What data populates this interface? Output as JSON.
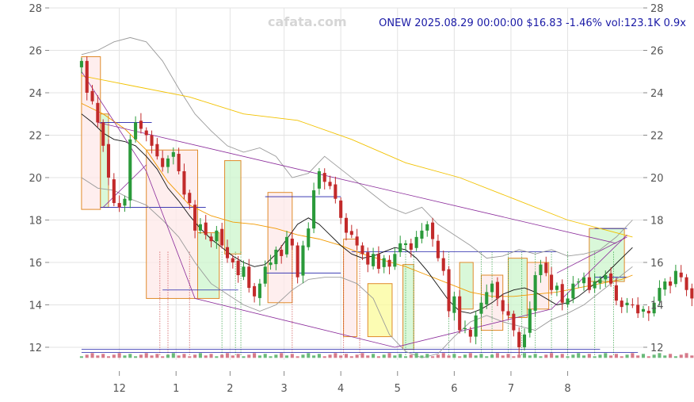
{
  "header": {
    "watermark": "cafata.com",
    "title": "ONEW 2025.08.29 00:00:00 $16.83 -1.46% vol:123.1K 0.9x"
  },
  "chart_data": {
    "type": "candlestick",
    "ylim": [
      11.4,
      28
    ],
    "y_ticks": [
      12,
      14,
      16,
      18,
      20,
      22,
      24,
      26,
      28
    ],
    "x_ticks": [
      {
        "label": "12",
        "t": 7
      },
      {
        "label": "1",
        "t": 17.5
      },
      {
        "label": "2",
        "t": 27.5
      },
      {
        "label": "3",
        "t": 37.5
      },
      {
        "label": "4",
        "t": 48
      },
      {
        "label": "5",
        "t": 58.5
      },
      {
        "label": "6",
        "t": 69
      },
      {
        "label": "7",
        "t": 79.5
      },
      {
        "label": "8",
        "t": 90
      }
    ],
    "xlim": [
      -6,
      104
    ],
    "closes": [
      25.5,
      24.0,
      23.6,
      22.6,
      21.5,
      20.0,
      18.8,
      18.6,
      19.0,
      21.8,
      22.6,
      22.3,
      22.0,
      21.5,
      21.0,
      20.5,
      20.9,
      21.2,
      20.3,
      19.2,
      18.8,
      17.5,
      17.8,
      17.3,
      17.0,
      17.5,
      16.8,
      16.2,
      16.0,
      15.4,
      15.8,
      14.8,
      14.4,
      15.0,
      15.8,
      16.0,
      16.6,
      16.3,
      17.2,
      16.8,
      15.3,
      16.8,
      17.6,
      19.4,
      20.3,
      19.8,
      19.6,
      19.0,
      18.1,
      17.4,
      17.3,
      16.8,
      16.4,
      15.9,
      16.4,
      15.7,
      16.2,
      15.8,
      16.4,
      16.9,
      16.9,
      16.6,
      17.2,
      17.5,
      17.8,
      17.1,
      16.2,
      15.6,
      13.7,
      14.4,
      12.8,
      12.9,
      12.5,
      13.5,
      14.1,
      14.6,
      15.0,
      14.3,
      13.7,
      13.5,
      12.8,
      12.0,
      12.6,
      13.8,
      15.4,
      15.9,
      15.5,
      14.7,
      14.9,
      14.1,
      14.3,
      15.0,
      15.1,
      15.3,
      14.7,
      15.1,
      15.2,
      15.4,
      15.0,
      14.2,
      13.9,
      14.1,
      14.0,
      13.6,
      13.8,
      13.6,
      14.1,
      14.8,
      15.1,
      14.9,
      15.6,
      15.3,
      14.7,
      14.3,
      14.1,
      14.5,
      15.2,
      14.9,
      15.6,
      15.9,
      16.0,
      16.2,
      16.1,
      16.7,
      16.8,
      16.9,
      17.1,
      17.3,
      17.2,
      17.0,
      16.8
    ],
    "ma_short": [
      [
        0,
        23.0
      ],
      [
        2,
        22.6
      ],
      [
        4,
        22.1
      ],
      [
        6,
        21.8
      ],
      [
        8,
        21.7
      ],
      [
        10,
        21.5
      ],
      [
        12,
        21.0
      ],
      [
        14,
        20.4
      ],
      [
        16,
        19.5
      ],
      [
        18,
        18.9
      ],
      [
        20,
        18.2
      ],
      [
        22,
        17.6
      ],
      [
        24,
        17.1
      ],
      [
        26,
        16.7
      ],
      [
        28,
        16.3
      ],
      [
        30,
        16.0
      ],
      [
        32,
        15.8
      ],
      [
        34,
        15.9
      ],
      [
        36,
        16.4
      ],
      [
        38,
        17.1
      ],
      [
        40,
        17.8
      ],
      [
        42,
        18.1
      ],
      [
        44,
        17.8
      ],
      [
        46,
        17.3
      ],
      [
        48,
        16.8
      ],
      [
        50,
        16.4
      ],
      [
        52,
        16.2
      ],
      [
        54,
        16.3
      ],
      [
        56,
        16.5
      ],
      [
        58,
        16.7
      ],
      [
        60,
        16.6
      ],
      [
        62,
        16.2
      ],
      [
        64,
        15.6
      ],
      [
        66,
        14.9
      ],
      [
        68,
        14.2
      ],
      [
        70,
        13.7
      ],
      [
        72,
        13.6
      ],
      [
        74,
        13.8
      ],
      [
        76,
        14.1
      ],
      [
        78,
        14.5
      ],
      [
        80,
        14.7
      ],
      [
        82,
        14.8
      ],
      [
        84,
        14.6
      ],
      [
        86,
        14.3
      ],
      [
        88,
        14.0
      ],
      [
        90,
        14.1
      ],
      [
        92,
        14.4
      ],
      [
        94,
        14.8
      ],
      [
        96,
        15.2
      ],
      [
        98,
        15.7
      ],
      [
        100,
        16.2
      ],
      [
        102,
        16.7
      ]
    ],
    "ma_mid": [
      [
        0,
        23.5
      ],
      [
        4,
        23.0
      ],
      [
        8,
        22.3
      ],
      [
        12,
        21.3
      ],
      [
        16,
        19.8
      ],
      [
        20,
        18.7
      ],
      [
        24,
        18.2
      ],
      [
        28,
        17.9
      ],
      [
        32,
        17.8
      ],
      [
        36,
        17.6
      ],
      [
        40,
        17.3
      ],
      [
        44,
        17.1
      ],
      [
        48,
        16.8
      ],
      [
        52,
        16.4
      ],
      [
        56,
        16.1
      ],
      [
        60,
        15.8
      ],
      [
        64,
        15.4
      ],
      [
        68,
        15.0
      ],
      [
        72,
        14.6
      ],
      [
        76,
        14.4
      ],
      [
        80,
        14.4
      ],
      [
        84,
        14.5
      ],
      [
        88,
        14.6
      ],
      [
        92,
        14.8
      ],
      [
        96,
        15.0
      ],
      [
        100,
        15.2
      ],
      [
        102,
        15.4
      ]
    ],
    "ma_long": [
      [
        0,
        24.8
      ],
      [
        10,
        24.3
      ],
      [
        20,
        23.8
      ],
      [
        30,
        23.0
      ],
      [
        40,
        22.7
      ],
      [
        50,
        21.8
      ],
      [
        60,
        20.7
      ],
      [
        70,
        20.0
      ],
      [
        80,
        19.0
      ],
      [
        90,
        18.0
      ],
      [
        96,
        17.6
      ],
      [
        102,
        17.2
      ]
    ],
    "bb_upper": [
      [
        0,
        25.8
      ],
      [
        3,
        26.0
      ],
      [
        6,
        26.4
      ],
      [
        9,
        26.6
      ],
      [
        12,
        26.4
      ],
      [
        15,
        25.5
      ],
      [
        18,
        24.2
      ],
      [
        21,
        23.0
      ],
      [
        24,
        22.2
      ],
      [
        27,
        21.5
      ],
      [
        30,
        21.2
      ],
      [
        33,
        21.4
      ],
      [
        36,
        21.0
      ],
      [
        39,
        20.0
      ],
      [
        42,
        20.2
      ],
      [
        45,
        21.0
      ],
      [
        48,
        20.4
      ],
      [
        51,
        19.8
      ],
      [
        54,
        19.2
      ],
      [
        57,
        18.6
      ],
      [
        60,
        18.3
      ],
      [
        63,
        18.6
      ],
      [
        66,
        17.8
      ],
      [
        69,
        17.3
      ],
      [
        72,
        16.8
      ],
      [
        75,
        16.2
      ],
      [
        78,
        16.3
      ],
      [
        81,
        16.6
      ],
      [
        84,
        16.4
      ],
      [
        87,
        16.6
      ],
      [
        90,
        16.3
      ],
      [
        93,
        16.4
      ],
      [
        96,
        16.6
      ],
      [
        99,
        17.2
      ],
      [
        102,
        18.0
      ]
    ],
    "bb_lower": [
      [
        0,
        20.0
      ],
      [
        3,
        19.5
      ],
      [
        6,
        19.4
      ],
      [
        9,
        19.0
      ],
      [
        12,
        18.7
      ],
      [
        15,
        18.0
      ],
      [
        18,
        17.2
      ],
      [
        21,
        16.0
      ],
      [
        24,
        15.0
      ],
      [
        27,
        14.5
      ],
      [
        30,
        14.0
      ],
      [
        33,
        13.7
      ],
      [
        36,
        14.0
      ],
      [
        39,
        14.7
      ],
      [
        42,
        15.2
      ],
      [
        45,
        15.3
      ],
      [
        48,
        15.3
      ],
      [
        51,
        15.0
      ],
      [
        54,
        14.3
      ],
      [
        57,
        12.6
      ],
      [
        60,
        11.8
      ],
      [
        63,
        11.5
      ],
      [
        66,
        11.7
      ],
      [
        69,
        12.5
      ],
      [
        72,
        13.2
      ],
      [
        75,
        13.5
      ],
      [
        78,
        13.2
      ],
      [
        81,
        13.0
      ],
      [
        84,
        12.8
      ],
      [
        87,
        13.3
      ],
      [
        90,
        13.6
      ],
      [
        93,
        14.0
      ],
      [
        96,
        14.6
      ],
      [
        99,
        15.2
      ],
      [
        102,
        15.8
      ]
    ],
    "boxes": [
      {
        "t0": 0,
        "t1": 3.5,
        "lo": 18.5,
        "hi": 25.7,
        "kind": "down"
      },
      {
        "t0": 3.5,
        "t1": 5,
        "lo": 18.6,
        "hi": 23.0,
        "kind": "up"
      },
      {
        "t0": 12,
        "t1": 21.5,
        "lo": 14.3,
        "hi": 21.3,
        "kind": "down"
      },
      {
        "t0": 21.5,
        "t1": 25.5,
        "lo": 14.3,
        "hi": 17.4,
        "kind": "up"
      },
      {
        "t0": 26.5,
        "t1": 29.5,
        "lo": 16.4,
        "hi": 20.8,
        "kind": "up"
      },
      {
        "t0": 34.5,
        "t1": 39,
        "lo": 14.1,
        "hi": 19.3,
        "kind": "down"
      },
      {
        "t0": 48.5,
        "t1": 51,
        "lo": 12.5,
        "hi": 17.1,
        "kind": "down"
      },
      {
        "t0": 53,
        "t1": 57.5,
        "lo": 12.5,
        "hi": 15.0,
        "kind": "flat"
      },
      {
        "t0": 59.5,
        "t1": 61.5,
        "lo": 11.9,
        "hi": 15.9,
        "kind": "up"
      },
      {
        "t0": 70,
        "t1": 72.5,
        "lo": 13.8,
        "hi": 16.0,
        "kind": "up"
      },
      {
        "t0": 74,
        "t1": 78,
        "lo": 12.8,
        "hi": 15.4,
        "kind": "down"
      },
      {
        "t0": 79,
        "t1": 82.5,
        "lo": 13.4,
        "hi": 16.2,
        "kind": "up"
      },
      {
        "t0": 82.5,
        "t1": 86.5,
        "lo": 13.8,
        "hi": 16.0,
        "kind": "down"
      },
      {
        "t0": 94,
        "t1": 100.5,
        "lo": 15.1,
        "hi": 17.6,
        "kind": "up"
      }
    ],
    "hlines": [
      {
        "t0": 3.5,
        "t1": 13,
        "y": 22.6
      },
      {
        "t0": 3.5,
        "t1": 23,
        "y": 18.6
      },
      {
        "t0": 15,
        "t1": 29,
        "y": 14.7
      },
      {
        "t0": 34,
        "t1": 48,
        "y": 19.1
      },
      {
        "t0": 34,
        "t1": 48,
        "y": 15.5
      },
      {
        "t0": 50,
        "t1": 88,
        "y": 16.5
      },
      {
        "t0": 0,
        "t1": 96,
        "y": 11.9
      },
      {
        "t0": 0,
        "t1": 103,
        "y": 11.75
      },
      {
        "t0": 95,
        "t1": 101,
        "y": 17.6
      },
      {
        "t0": 95,
        "t1": 101,
        "y": 15.3
      }
    ],
    "trendlines": [
      [
        [
          0,
          25.0
        ],
        [
          12,
          20.3
        ],
        [
          21,
          14.3
        ],
        [
          58,
          12.0
        ],
        [
          87,
          13.8
        ],
        [
          101,
          17.3
        ]
      ],
      [
        [
          3,
          22.6
        ],
        [
          99,
          16.9
        ]
      ],
      [
        [
          4,
          18.6
        ],
        [
          12,
          20.6
        ]
      ],
      [
        [
          88,
          15.5
        ],
        [
          101,
          17.2
        ]
      ]
    ],
    "vmarks": [
      {
        "t": 14.5,
        "c": "#c94040"
      },
      {
        "t": 16,
        "c": "#c94040"
      },
      {
        "t": 20,
        "c": "#c94040"
      },
      {
        "t": 26,
        "c": "#2a9a3a"
      },
      {
        "t": 28.5,
        "c": "#2a9a3a"
      },
      {
        "t": 29.5,
        "c": "#2a9a3a"
      },
      {
        "t": 39,
        "c": "#c94040"
      },
      {
        "t": 48.5,
        "c": "#c94040"
      },
      {
        "t": 51.5,
        "c": "#c94040"
      },
      {
        "t": 60,
        "c": "#2a9a3a"
      },
      {
        "t": 61.5,
        "c": "#2a9a3a"
      },
      {
        "t": 68,
        "c": "#2a9a3a"
      },
      {
        "t": 74,
        "c": "#2a9a3a"
      },
      {
        "t": 76,
        "c": "#2a9a3a"
      },
      {
        "t": 79,
        "c": "#2a9a3a"
      },
      {
        "t": 81.5,
        "c": "#2a9a3a"
      },
      {
        "t": 84,
        "c": "#2a9a3a"
      },
      {
        "t": 87,
        "c": "#2a9a3a"
      },
      {
        "t": 90,
        "c": "#2a9a3a"
      },
      {
        "t": 95,
        "c": "#2a9a3a"
      },
      {
        "t": 98.5,
        "c": "#2a9a3a"
      }
    ],
    "grid": true
  }
}
